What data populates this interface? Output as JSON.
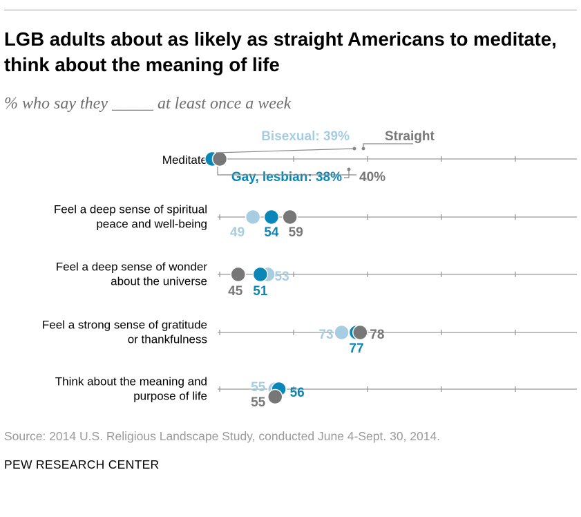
{
  "title": "LGB adults about as likely as straight Americans to meditate, think about the meaning of life",
  "subtitle": "% who say they _____ at least once a week",
  "source": "Source: 2014 U.S. Religious Landscape Study, conducted June 4-Sept. 30, 2014.",
  "org": "PEW RESEARCH CENTER",
  "colors": {
    "bisexual": "#a6cde2",
    "gay_lesbian": "#0b87b7",
    "straight": "#777777",
    "axis": "#999999"
  },
  "legend_labels": {
    "bisexual": "Bisexual: 39%",
    "straight": "Straight",
    "gay_lesbian": "Gay, lesbian: 38%",
    "straight_value": "40%"
  },
  "chart_data": {
    "type": "scatter",
    "categories": [
      [
        "Meditate"
      ],
      [
        "Feel a deep sense of spiritual",
        "peace and well-being"
      ],
      [
        "Feel a deep sense of wonder",
        "about the universe"
      ],
      [
        "Feel a strong sense of gratitude",
        "or thankfulness"
      ],
      [
        "Think about the meaning and",
        "purpose of life"
      ]
    ],
    "series": [
      {
        "name": "Bisexual",
        "values": [
          39,
          49,
          53,
          73,
          55
        ]
      },
      {
        "name": "Gay, lesbian",
        "values": [
          38,
          54,
          51,
          77,
          56
        ]
      },
      {
        "name": "Straight",
        "values": [
          40,
          59,
          45,
          78,
          55
        ]
      }
    ],
    "value_labels": {
      "Bisexual": [
        "",
        "49",
        "53",
        "73",
        "55"
      ],
      "Gay, lesbian": [
        "",
        "54",
        "51",
        "77",
        "56"
      ],
      "Straight": [
        "",
        "59",
        "45",
        "78",
        "55"
      ]
    },
    "xlim": [
      0,
      100
    ],
    "grid": false,
    "legend": "inline-annotations"
  }
}
